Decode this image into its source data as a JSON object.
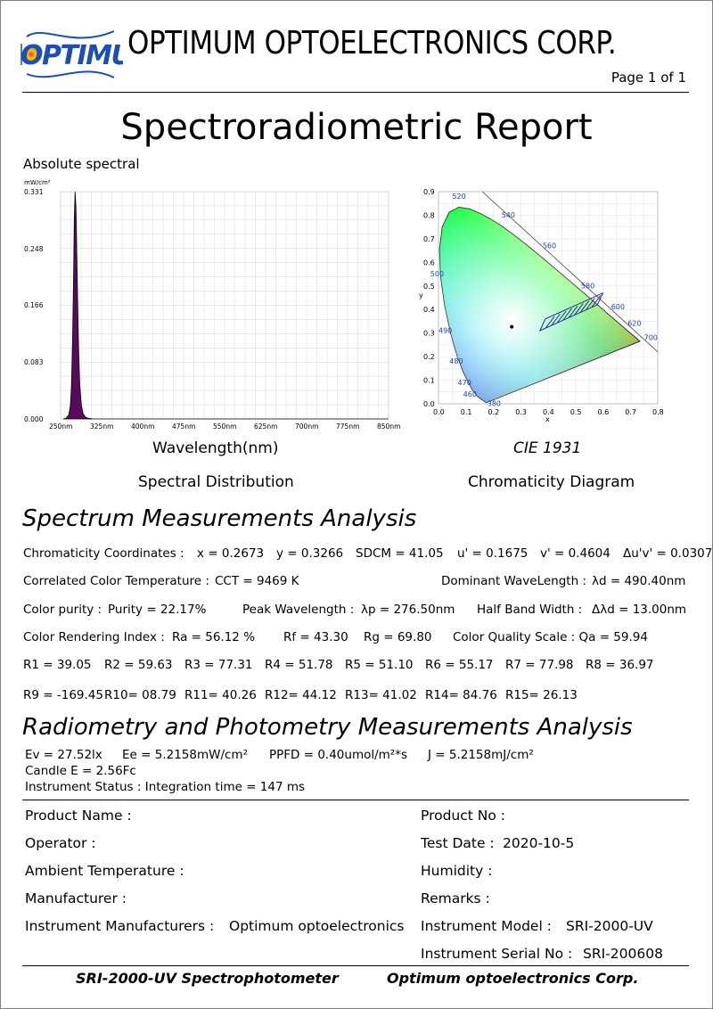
{
  "header": {
    "logo_text": "OPTIMUM",
    "company_name": "OPTIMUM OPTOELECTRONICS CORP.",
    "page_number": "Page 1 of 1",
    "report_title": "Spectroradiometric Report",
    "spectral_section_label": "Absolute spectral"
  },
  "colors": {
    "spectrum_fill": "#5a0a5a",
    "grid": "#d8d8d8",
    "logo_blue": "#1d4fb3"
  },
  "chart_data": [
    {
      "type": "area",
      "ylabel": "mW/cm²",
      "xlabel": "Wavelength(nm)",
      "caption": "Spectral Distribution",
      "x_ticks": [
        250,
        325,
        400,
        475,
        550,
        625,
        700,
        775,
        850
      ],
      "x_tick_labels": [
        "250nm",
        "325nm",
        "400nm",
        "475nm",
        "550nm",
        "625nm",
        "700nm",
        "775nm",
        "850nm"
      ],
      "y_ticks": [
        0.0,
        0.083,
        0.166,
        0.248,
        0.331
      ],
      "y_tick_labels": [
        "0.000",
        "0.083",
        "0.166",
        "0.248",
        "0.331"
      ],
      "xlim": [
        250,
        850
      ],
      "ylim": [
        0,
        0.331
      ],
      "x": [
        255,
        260,
        265,
        268,
        270,
        272,
        274,
        275,
        276.5,
        278,
        279,
        281,
        283,
        285,
        288,
        291,
        295,
        300,
        310,
        330,
        400,
        500,
        600,
        700,
        850
      ],
      "y": [
        0.0,
        0.001,
        0.006,
        0.02,
        0.05,
        0.12,
        0.22,
        0.29,
        0.331,
        0.31,
        0.27,
        0.18,
        0.1,
        0.05,
        0.02,
        0.008,
        0.003,
        0.001,
        0.0,
        0.0,
        0.0,
        0.0,
        0.0,
        0.0,
        0.0
      ],
      "grid": true
    },
    {
      "type": "scatter",
      "title": "CIE 1931",
      "caption": "Chromaticity Diagram",
      "xlabel": "x",
      "ylabel": "y",
      "xlim": [
        0,
        0.8
      ],
      "ylim": [
        0,
        0.9
      ],
      "x_tick_labels": [
        "0.0",
        "0.1",
        "0.2",
        "0.3",
        "0.4",
        "0.5",
        "0.6",
        "0.7",
        "0.8"
      ],
      "y_tick_labels": [
        "0.0",
        "0.1",
        "0.2",
        "0.3",
        "0.4",
        "0.5",
        "0.6",
        "0.7",
        "0.8",
        "0.9"
      ],
      "wavelength_labels": [
        "380",
        "460",
        "470",
        "480",
        "490",
        "500",
        "520",
        "540",
        "560",
        "580",
        "600",
        "620",
        "700"
      ],
      "point": {
        "x": 0.2673,
        "y": 0.3266
      },
      "grid": true
    }
  ],
  "spectrum": {
    "heading": "Spectrum Measurements Analysis",
    "r1": {
      "chrom_label": "Chromaticity Coordinates :",
      "x": "x = 0.2673",
      "y": "y = 0.3266",
      "sdcm": "SDCM = 41.05",
      "u": "u' = 0.1675",
      "v": "v' = 0.4604",
      "duv": "Δu'v' = 0.0307"
    },
    "r2": {
      "cct_label": "Correlated Color Temperature :",
      "cct": "CCT = 9469 K",
      "dom_label": "Dominant WaveLength :",
      "dom": "λd = 490.40nm"
    },
    "r3": {
      "purity_label": "Color purity :",
      "purity": "Purity = 22.17%",
      "peak_label": "Peak Wavelength :",
      "peak": "λp = 276.50nm",
      "hbw_label": "Half Band Width :",
      "hbw": "Δλd = 13.00nm"
    },
    "r4": {
      "cri_label": "Color Rendering Index :",
      "ra": "Ra = 56.12 %",
      "rf": "Rf = 43.30",
      "rg": "Rg = 69.80",
      "cqs": "Color Quality Scale : Qa = 59.94"
    },
    "r5": [
      "R1 = 39.05",
      "R2 = 59.63",
      "R3 = 77.31",
      "R4 = 51.78",
      "R5 = 51.10",
      "R6 = 55.17",
      "R7 = 77.98",
      "R8 = 36.97"
    ],
    "r6": [
      "R9 = -169.45",
      "R10= 08.79",
      "R11= 40.26",
      "R12= 44.12",
      "R13= 41.02",
      "R14= 84.76",
      "R15= 26.13"
    ]
  },
  "radiometry": {
    "heading": "Radiometry and Photometry Measurements Analysis",
    "ev": "Ev = 27.52lx",
    "ee": "Ee = 5.2158mW/cm²",
    "ppfd": "PPFD = 0.40umol/m²*s",
    "j": "J = 5.2158mJ/cm²",
    "candle": "Candle E = 2.56Fc",
    "status": "Instrument Status : Integration time = 147 ms"
  },
  "info": {
    "product_name": "Product Name :",
    "product_no": "Product No :",
    "operator": "Operator :",
    "test_date_label": "Test Date :",
    "test_date": "2020-10-5",
    "ambient": "Ambient Temperature :",
    "humidity": "Humidity :",
    "manufacturer": "Manufacturer :",
    "remarks": "Remarks :",
    "inst_mfr_label": "Instrument Manufacturers :",
    "inst_mfr": "Optimum optoelectronics",
    "inst_model_label": "Instrument Model :",
    "inst_model": "SRI-2000-UV",
    "inst_serial_label": "Instrument Serial No :",
    "inst_serial": "SRI-200608"
  },
  "footer": {
    "left": "SRI-2000-UV Spectrophotometer",
    "right": "Optimum optoelectronics Corp."
  }
}
